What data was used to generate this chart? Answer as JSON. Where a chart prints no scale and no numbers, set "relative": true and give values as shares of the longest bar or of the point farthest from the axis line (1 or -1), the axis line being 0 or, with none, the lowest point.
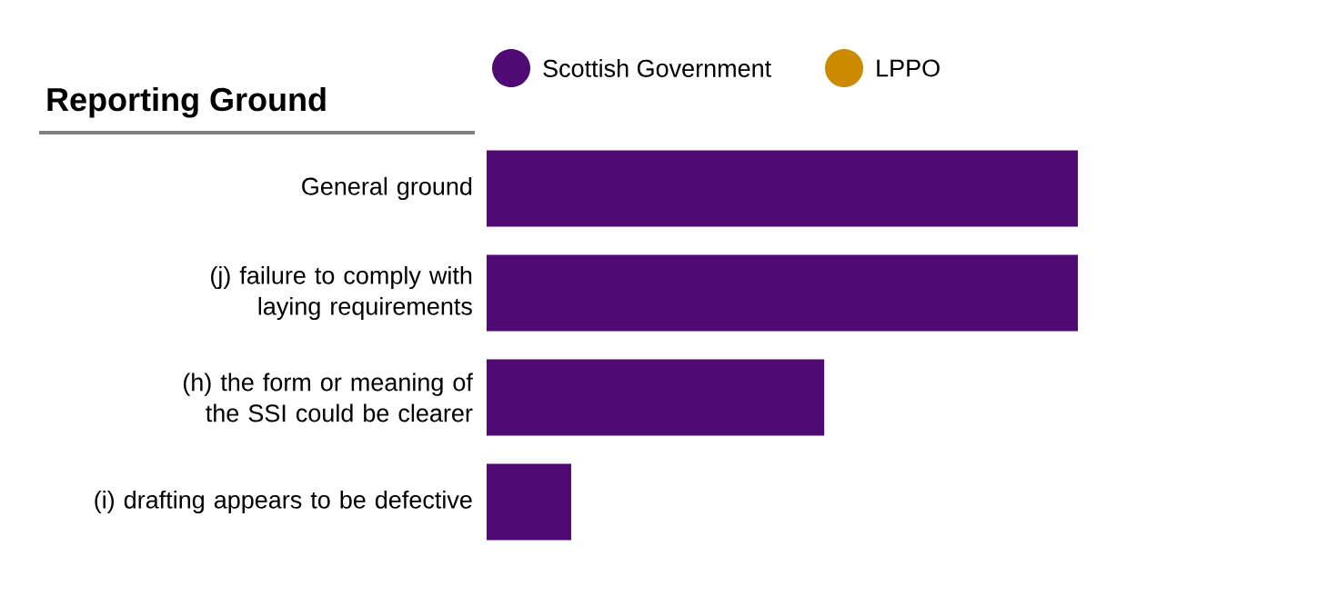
{
  "chart_data": {
    "type": "bar",
    "orientation": "horizontal",
    "relative": true,
    "ylabel": "Reporting Ground",
    "categories": [
      "General ground",
      "(j) failure to comply with laying requirements",
      "(h) the form or meaning of the SSI could be clearer",
      "(i) drafting appears to be defective"
    ],
    "series": [
      {
        "name": "Scottish Government",
        "color": "#500a73",
        "values": [
          1,
          1,
          0.571,
          0.143
        ]
      },
      {
        "name": "LPPO",
        "color": "#cc8a00",
        "values": [
          0,
          0,
          0,
          0
        ]
      }
    ],
    "legend": "top"
  }
}
